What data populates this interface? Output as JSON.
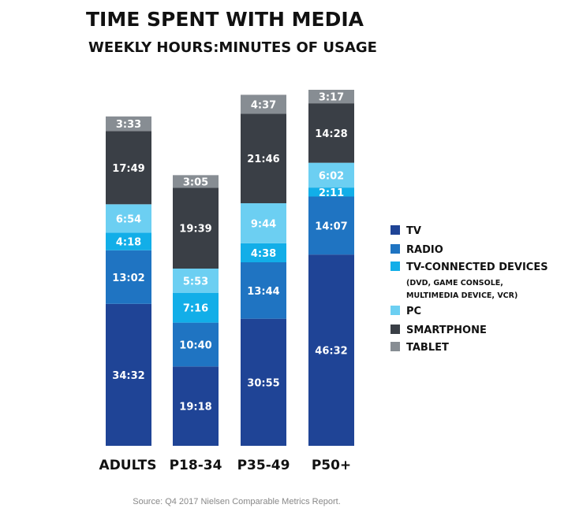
{
  "chart_data": {
    "type": "bar",
    "stacked": true,
    "title": "TIME SPENT WITH MEDIA",
    "subtitle": "WEEKLY HOURS:MINUTES OF USAGE",
    "categories": [
      "ADULTS",
      "P18-34",
      "P35-49",
      "P50+"
    ],
    "series": [
      {
        "name": "TV",
        "color": "#1f4496",
        "values": [
          "34:32",
          "19:18",
          "30:55",
          "46:32"
        ]
      },
      {
        "name": "RADIO",
        "color": "#1f74c2",
        "values": [
          "13:02",
          "10:40",
          "13:44",
          "14:07"
        ]
      },
      {
        "name": "TV-CONNECTED DEVICES",
        "color": "#12aee8",
        "values": [
          "4:18",
          "7:16",
          "4:38",
          "2:11"
        ]
      },
      {
        "name": "PC",
        "color": "#6ccff2",
        "values": [
          "6:54",
          "5:53",
          "9:44",
          "6:02"
        ]
      },
      {
        "name": "SMARTPHONE",
        "color": "#3a3f46",
        "values": [
          "17:49",
          "19:39",
          "21:46",
          "14:28"
        ]
      },
      {
        "name": "TABLET",
        "color": "#878d93",
        "values": [
          "3:33",
          "3:05",
          "4:37",
          "3:17"
        ]
      }
    ],
    "legend": {
      "position": "right",
      "note": "(DVD, GAME CONSOLE, MULTIMEDIA DEVICE, VCR)"
    },
    "source": "Source: Q4 2017 Nielsen Comparable Metrics Report."
  }
}
